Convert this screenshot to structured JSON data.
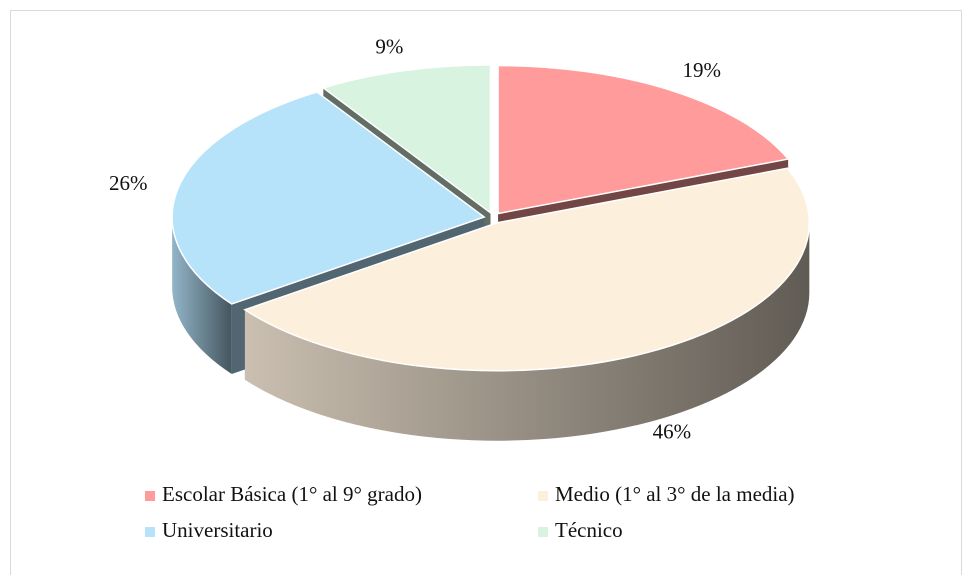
{
  "chart_data": {
    "type": "pie3d",
    "categories": [
      "Escolar Básica (1° al 9° grado)",
      "Medio (1° al 3° de la media)",
      "Universitario",
      "Técnico"
    ],
    "values": [
      19,
      46,
      26,
      9
    ],
    "value_labels": [
      "19%",
      "46%",
      "26%",
      "9%"
    ],
    "colors": [
      "#ff9b9b",
      "#fcefdc",
      "#b6e2fa",
      "#d9f3e1"
    ],
    "legend": "bottom"
  }
}
